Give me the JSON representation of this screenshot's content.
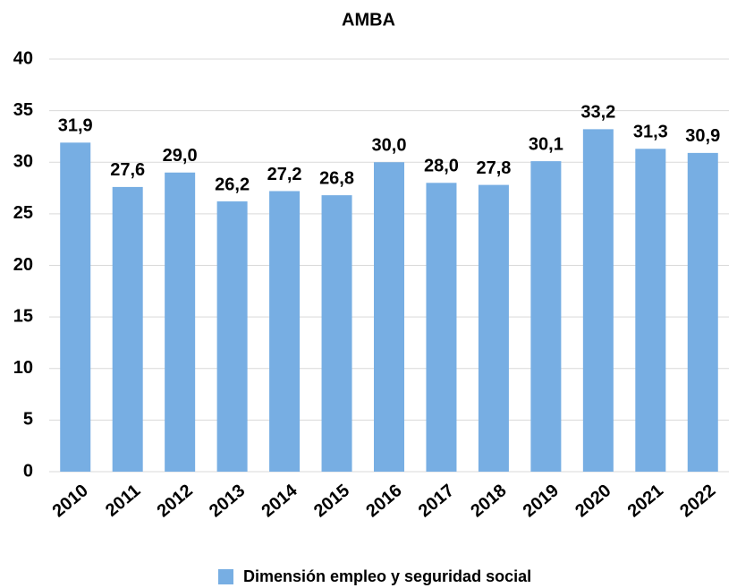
{
  "chart_data": {
    "type": "bar",
    "title": "AMBA",
    "categories": [
      "2010",
      "2011",
      "2012",
      "2013",
      "2014",
      "2015",
      "2016",
      "2017",
      "2018",
      "2019",
      "2020",
      "2021",
      "2022"
    ],
    "series": [
      {
        "name": "Dimensión empleo y seguridad social",
        "color": "#77aee3",
        "values": [
          31.9,
          27.6,
          29.0,
          26.2,
          27.2,
          26.8,
          30.0,
          28.0,
          27.8,
          30.1,
          33.2,
          31.3,
          30.9
        ],
        "value_labels": [
          "31,9",
          "27,6",
          "29,0",
          "26,2",
          "27,2",
          "26,8",
          "30,0",
          "28,0",
          "27,8",
          "30,1",
          "33,2",
          "31,3",
          "30,9"
        ]
      }
    ],
    "ylim": [
      0,
      40
    ],
    "yticks": [
      0,
      5,
      10,
      15,
      20,
      25,
      30,
      35,
      40
    ],
    "grid": true,
    "legend": "bottom"
  }
}
